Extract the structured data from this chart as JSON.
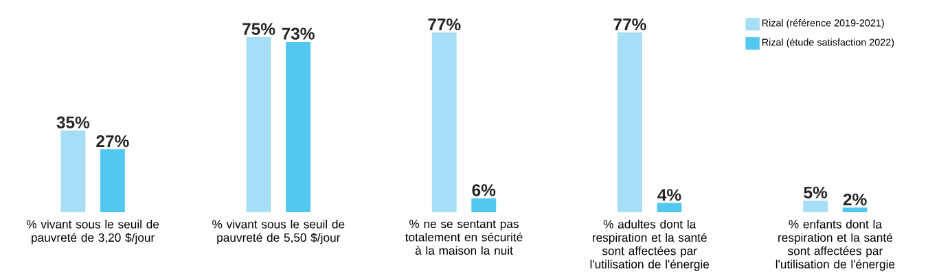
{
  "chart_data": {
    "type": "bar",
    "categories": [
      "% vivant sous le seuil de pauvreté de 3,20 $/jour",
      "% vivant sous le seuil de pauvreté de 5,50 $/jour",
      "% ne se sentant pas totalement en sécurité à la maison la nuit",
      "% adultes dont la respiration et la santé sont affectées par l'utilisation de l'énergie",
      "% enfants dont la respiration et la santé sont affectées par l'utilisation de l'énergie"
    ],
    "series": [
      {
        "name": "Rizal (référence 2019-2021)",
        "color": "#a6dff5",
        "values": [
          35,
          75,
          77,
          77,
          5
        ],
        "value_labels": [
          "35%",
          "75%",
          "77%",
          "77%",
          "5%"
        ]
      },
      {
        "name": "Rizal (étude satisfaction 2022)",
        "color": "#53c7ef",
        "values": [
          27,
          73,
          6,
          4,
          2
        ],
        "value_labels": [
          "27%",
          "73%",
          "6%",
          "4%",
          "2%"
        ]
      }
    ],
    "legend": "top right"
  }
}
